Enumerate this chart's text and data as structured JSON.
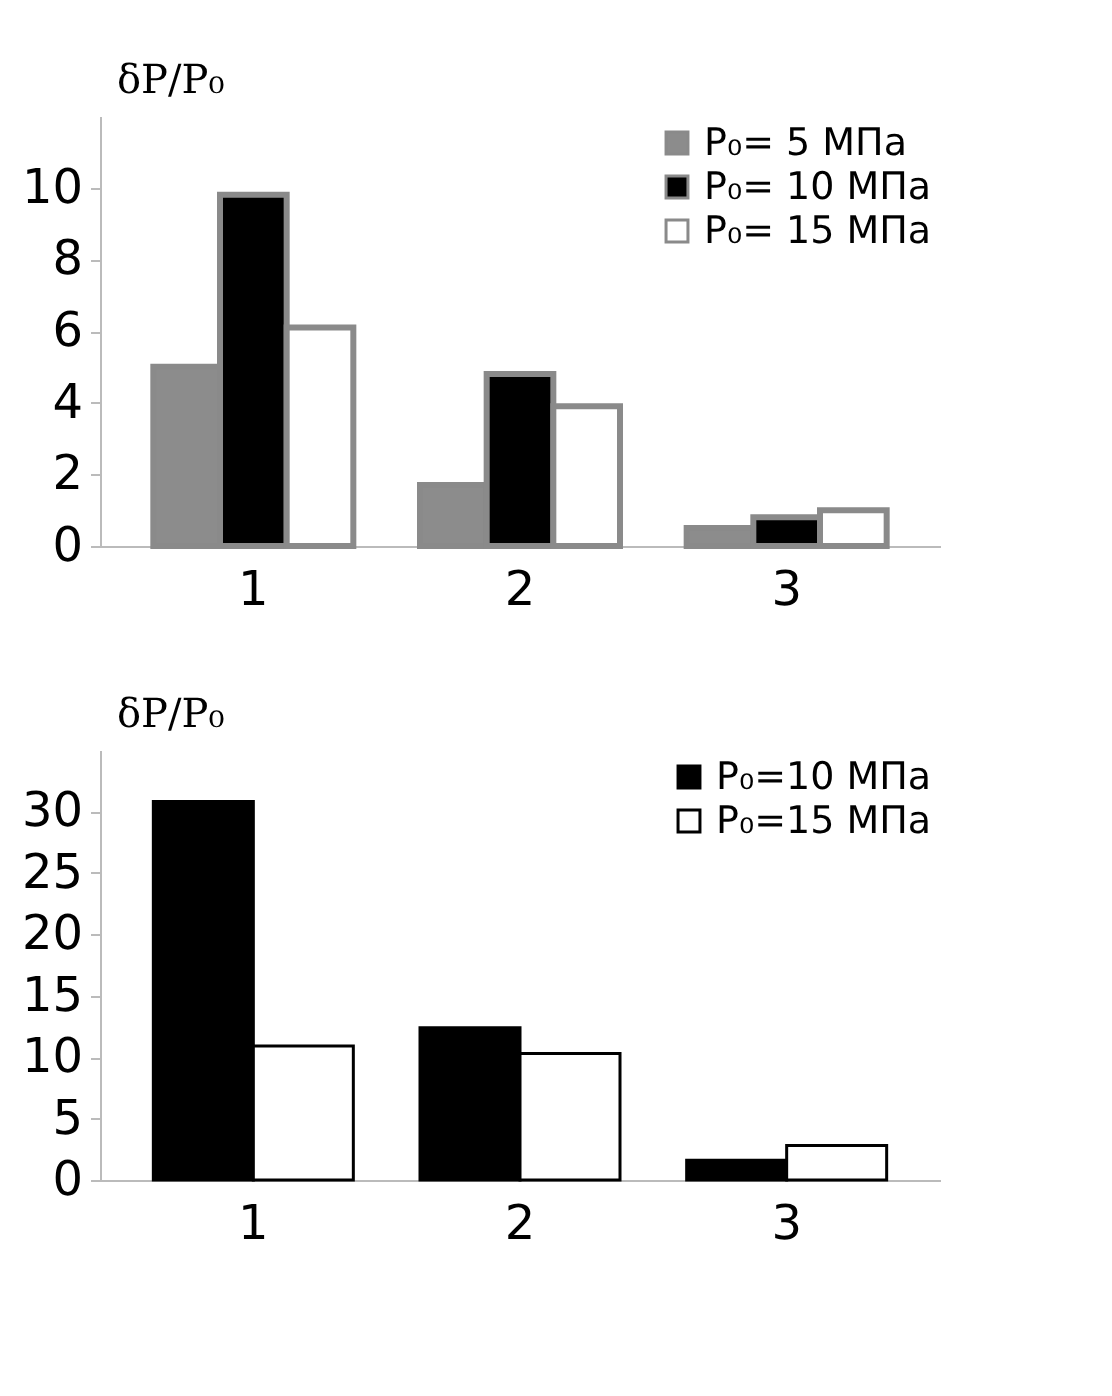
{
  "chart_data": [
    {
      "type": "bar",
      "ylabel": "δP/P₀",
      "categories": [
        "1",
        "2",
        "3"
      ],
      "ylim": [
        0,
        12
      ],
      "yticks": [
        0,
        2,
        4,
        6,
        8,
        10
      ],
      "legend": "top right",
      "grid": false,
      "series": [
        {
          "name": "P₀= 5 МПа",
          "color": "#8c8c8c",
          "values": [
            5.0,
            1.7,
            0.5
          ]
        },
        {
          "name": "P₀= 10 МПа",
          "color": "#000000",
          "values": [
            9.8,
            4.8,
            0.8
          ]
        },
        {
          "name": "P₀= 15 МПа",
          "color": "#ffffff",
          "values": [
            6.1,
            3.9,
            1.0
          ]
        }
      ]
    },
    {
      "type": "bar",
      "ylabel": "δP/P₀",
      "categories": [
        "1",
        "2",
        "3"
      ],
      "ylim": [
        0,
        35
      ],
      "yticks": [
        0,
        5,
        10,
        15,
        20,
        25,
        30
      ],
      "legend": "top right",
      "grid": false,
      "series": [
        {
          "name": "P₀=10 МПа",
          "color": "#000000",
          "values": [
            30.8,
            12.4,
            1.6
          ]
        },
        {
          "name": "P₀=15 МПа",
          "color": "#ffffff",
          "values": [
            10.9,
            10.3,
            2.8
          ]
        }
      ]
    }
  ]
}
